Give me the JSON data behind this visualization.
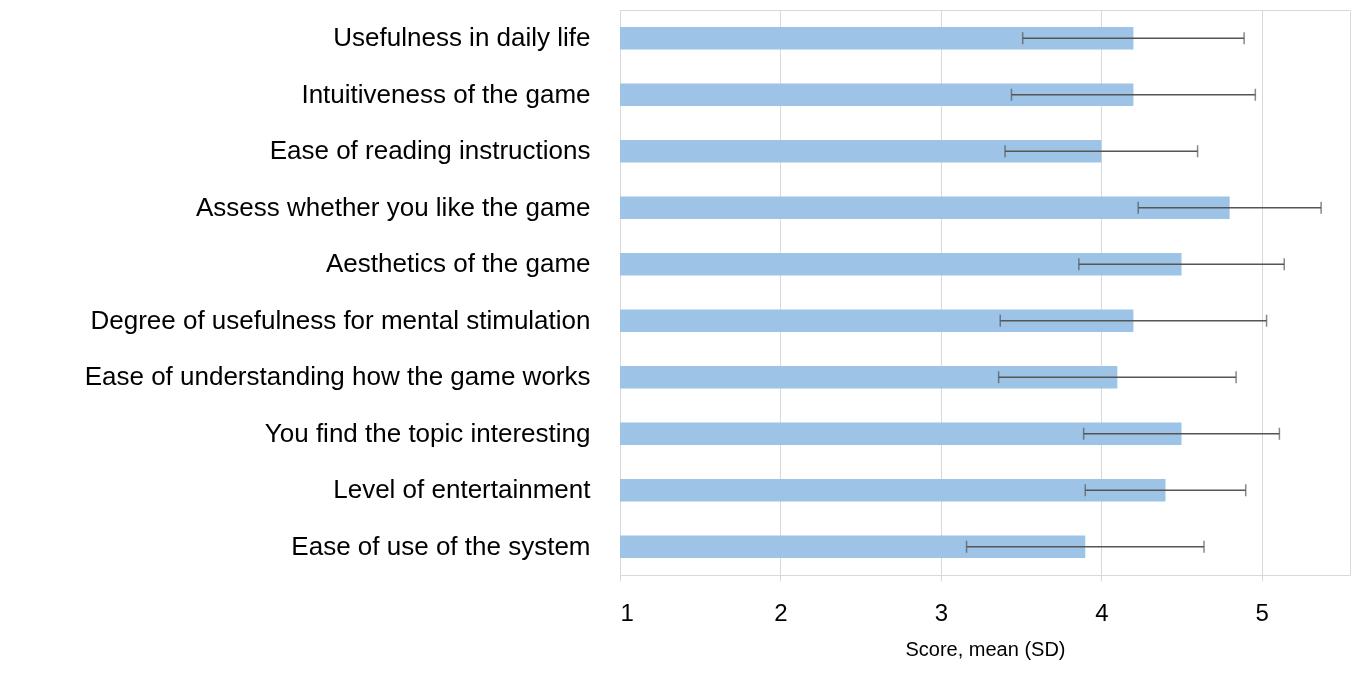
{
  "chart_data": {
    "type": "bar",
    "orientation": "horizontal",
    "xlabel": "Score, mean (SD)",
    "categories": [
      "Usefulness in daily life",
      "Intuitiveness of the game",
      "Ease of reading instructions",
      "Assess whether you like the game",
      "Aesthetics of the game",
      "Degree of usefulness for mental stimulation",
      "Ease of understanding how the game works",
      "You find the topic interesting",
      "Level of entertainment",
      "Ease of use of the system"
    ],
    "values": [
      4.2,
      4.2,
      4.0,
      4.8,
      4.5,
      4.2,
      4.1,
      4.5,
      4.4,
      3.9
    ],
    "errors": [
      0.69,
      0.76,
      0.6,
      0.57,
      0.64,
      0.83,
      0.74,
      0.61,
      0.5,
      0.74
    ],
    "color": "#9dc3e6",
    "xlim": [
      1,
      5.55
    ],
    "xticks": [
      1,
      2,
      3,
      4,
      5
    ],
    "grid": "x"
  }
}
